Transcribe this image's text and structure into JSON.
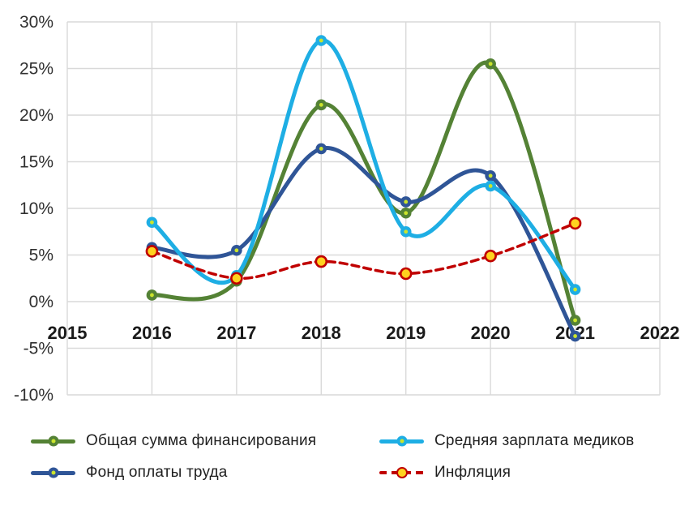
{
  "chart_data": {
    "type": "line",
    "title": "",
    "xlabel": "",
    "ylabel": "",
    "grid": true,
    "legend_position": "bottom-two-columns",
    "x_axis": {
      "tick_labels": [
        "2015",
        "2016",
        "2017",
        "2018",
        "2019",
        "2020",
        "2021",
        "2022"
      ],
      "range": [
        2015,
        2022
      ]
    },
    "y_axis": {
      "tick_labels": [
        "30%",
        "25%",
        "20%",
        "15%",
        "10%",
        "5%",
        "0%",
        "-5%",
        "-10%"
      ],
      "range": [
        -10,
        30
      ],
      "step": 5,
      "format": "percent"
    },
    "data_years": [
      2016,
      2017,
      2018,
      2019,
      2020,
      2021
    ],
    "series": [
      {
        "name": "Общая сумма финансирования",
        "color": "#548235",
        "line_style": "solid",
        "marker": "circle-with-dot",
        "values": [
          0.7,
          2.2,
          21.1,
          9.5,
          25.5,
          -2.0
        ]
      },
      {
        "name": "Фонд оплаты труда",
        "color": "#2F5597",
        "line_style": "solid",
        "marker": "circle-with-dot",
        "values": [
          5.8,
          5.5,
          16.4,
          10.7,
          13.5,
          -3.7
        ]
      },
      {
        "name": "Средняя зарплата медиков",
        "color": "#1EAEE4",
        "line_style": "solid",
        "marker": "circle-with-dot",
        "values": [
          8.5,
          2.8,
          28.0,
          7.5,
          12.4,
          1.3
        ]
      },
      {
        "name": "Инфляция",
        "color": "#C00000",
        "line_style": "dashed",
        "marker": "yellow-circle",
        "values": [
          5.4,
          2.5,
          4.3,
          3.0,
          4.9,
          8.4
        ]
      }
    ],
    "legend_display_order": [
      0,
      2,
      1,
      3
    ],
    "colors": {
      "marker_center": "#CBE42C",
      "marker_yellow": "#FFD21F",
      "gridline": "#D9D9D9",
      "x_label": "#1A1A1A",
      "y_label": "#303030"
    }
  }
}
